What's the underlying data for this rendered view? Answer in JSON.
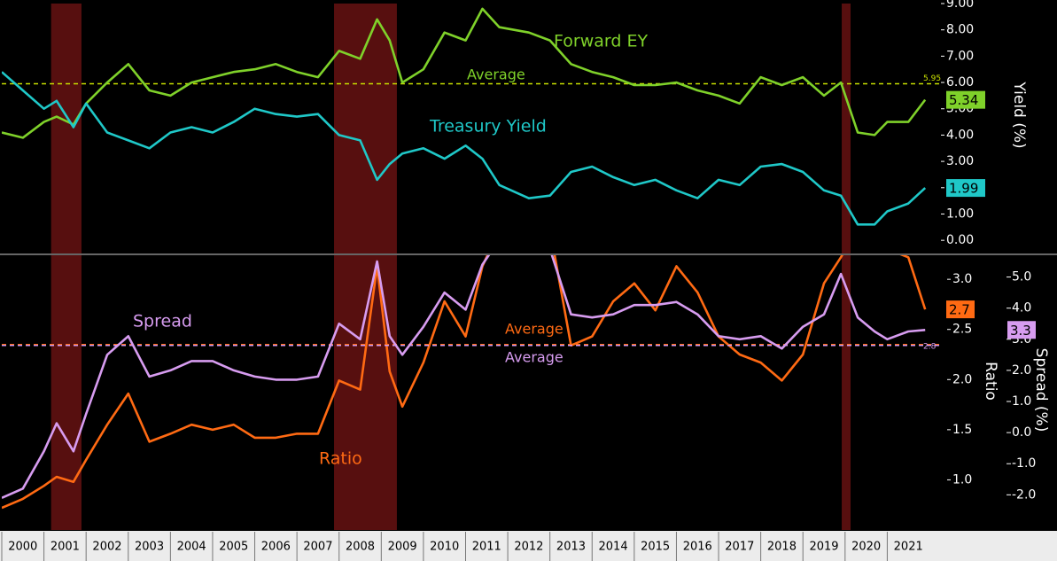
{
  "chart_data": [
    {
      "type": "line",
      "y_label": "Yield (%)",
      "annotations": [
        "Forward EY",
        "Average",
        "Treasury Yield"
      ],
      "xlim": [
        2000,
        2022
      ],
      "ylim": [
        -0.5,
        9.0
      ],
      "yticks": [
        {
          "value": 0,
          "label": "0.00"
        },
        {
          "value": 1,
          "label": "1.00"
        },
        {
          "value": 2,
          "label": "2.00"
        },
        {
          "value": 3,
          "label": "3.00"
        },
        {
          "value": 4,
          "label": "4.00"
        },
        {
          "value": 5,
          "label": "5.00"
        },
        {
          "value": 6,
          "label": "6.00"
        },
        {
          "value": 7,
          "label": "7.00"
        },
        {
          "value": 8,
          "label": "8.00"
        },
        {
          "value": 9,
          "label": "9.00"
        }
      ],
      "shaded_periods": [
        [
          2001.17,
          2001.89
        ],
        [
          2007.88,
          2009.37
        ],
        [
          2019.92,
          2020.13
        ]
      ],
      "x": [
        2000.0,
        2000.5,
        2001.0,
        2001.3,
        2001.7,
        2002.0,
        2002.5,
        2003.0,
        2003.5,
        2004.0,
        2004.5,
        2005.0,
        2005.5,
        2006.0,
        2006.5,
        2007.0,
        2007.5,
        2008.0,
        2008.5,
        2008.9,
        2009.2,
        2009.5,
        2010.0,
        2010.5,
        2011.0,
        2011.4,
        2011.8,
        2012.5,
        2013.0,
        2013.5,
        2014.0,
        2014.5,
        2015.0,
        2015.5,
        2016.0,
        2016.5,
        2017.0,
        2017.5,
        2018.0,
        2018.5,
        2019.0,
        2019.5,
        2019.9,
        2020.3,
        2020.7,
        2021.0,
        2021.5,
        2021.9
      ],
      "series": [
        {
          "name": "Forward EY",
          "color": "#7fd12a",
          "average": 5.95,
          "average_color": "#c8e000",
          "values": [
            4.1,
            3.9,
            4.5,
            4.7,
            4.4,
            5.2,
            6.0,
            6.7,
            5.7,
            5.5,
            6.0,
            6.2,
            6.4,
            6.5,
            6.7,
            6.4,
            6.2,
            7.2,
            6.9,
            8.4,
            7.6,
            6.0,
            6.5,
            7.9,
            7.6,
            8.8,
            8.1,
            7.9,
            7.6,
            6.7,
            6.4,
            6.2,
            5.9,
            5.9,
            6.0,
            5.7,
            5.5,
            5.2,
            6.2,
            5.9,
            6.2,
            5.5,
            6.0,
            4.1,
            4.0,
            4.5,
            4.5,
            5.34
          ]
        },
        {
          "name": "Treasury Yield",
          "color": "#1fc8c8",
          "values": [
            6.4,
            5.7,
            5.0,
            5.3,
            4.3,
            5.2,
            4.1,
            3.8,
            3.5,
            4.1,
            4.3,
            4.1,
            4.5,
            5.0,
            4.8,
            4.7,
            4.8,
            4.0,
            3.8,
            2.3,
            2.9,
            3.3,
            3.5,
            3.1,
            3.6,
            3.1,
            2.1,
            1.6,
            1.7,
            2.6,
            2.8,
            2.4,
            2.1,
            2.3,
            1.9,
            1.6,
            2.3,
            2.1,
            2.8,
            2.9,
            2.6,
            1.9,
            1.7,
            0.6,
            0.6,
            1.1,
            1.4,
            1.99
          ]
        }
      ]
    },
    {
      "type": "line",
      "y_label": "Ratio",
      "y2_label": "Spread (%)",
      "annotations": [
        "Spread",
        "Ratio",
        "Average",
        "Average"
      ],
      "xlim": [
        2000,
        2022
      ],
      "xticks": [
        2000,
        2001,
        2002,
        2003,
        2004,
        2005,
        2006,
        2007,
        2008,
        2009,
        2010,
        2011,
        2012,
        2013,
        2014,
        2015,
        2016,
        2017,
        2018,
        2019,
        2020,
        2021
      ],
      "ylim": [
        0.5,
        3.24
      ],
      "yticks": [
        {
          "value": 1,
          "label": "1.0"
        },
        1.5,
        {
          "value": 2,
          "label": "2.0"
        },
        2.5,
        {
          "value": 3,
          "label": "3.0"
        }
      ],
      "y2lim": [
        -3.13,
        5.7
      ],
      "y2ticks": [
        {
          "value": -2,
          "label": "-2.0"
        },
        {
          "value": -1,
          "label": "-1.0"
        },
        {
          "value": 0,
          "label": "0.0"
        },
        {
          "value": 1,
          "label": "1.0"
        },
        {
          "value": 2,
          "label": "2.0"
        },
        {
          "value": 3,
          "label": "3.0"
        },
        {
          "value": 4,
          "label": "4.0"
        },
        {
          "value": 5,
          "label": "5.0"
        }
      ],
      "shaded_periods": [
        [
          2001.17,
          2001.89
        ],
        [
          2007.88,
          2009.37
        ],
        [
          2019.92,
          2020.13
        ]
      ],
      "x": [
        2000.0,
        2000.5,
        2001.0,
        2001.3,
        2001.7,
        2002.0,
        2002.5,
        2003.0,
        2003.5,
        2004.0,
        2004.5,
        2005.0,
        2005.5,
        2006.0,
        2006.5,
        2007.0,
        2007.5,
        2008.0,
        2008.5,
        2008.9,
        2009.2,
        2009.5,
        2010.0,
        2010.5,
        2011.0,
        2011.4,
        2011.8,
        2012.5,
        2013.0,
        2013.5,
        2014.0,
        2014.5,
        2015.0,
        2015.5,
        2016.0,
        2016.5,
        2017.0,
        2017.5,
        2018.0,
        2018.5,
        2019.0,
        2019.5,
        2019.9,
        2020.3,
        2020.7,
        2021.0,
        2021.5,
        2021.9
      ],
      "series": [
        {
          "name": "Ratio",
          "color": "#ff6a13",
          "average": 2.35,
          "values": [
            0.72,
            0.81,
            0.94,
            1.03,
            0.98,
            1.2,
            1.55,
            1.86,
            1.38,
            1.46,
            1.55,
            1.5,
            1.55,
            1.42,
            1.42,
            1.46,
            1.46,
            1.99,
            1.9,
            3.13,
            2.08,
            1.73,
            2.17,
            2.78,
            2.43,
            3.13,
            3.5,
            3.57,
            3.5,
            2.34,
            2.43,
            2.78,
            2.96,
            2.69,
            3.13,
            2.87,
            2.43,
            2.25,
            2.17,
            1.99,
            2.25,
            2.96,
            3.22,
            3.5,
            3.5,
            3.3,
            3.22,
            2.7
          ]
        },
        {
          "name": "Spread",
          "color": "#d79cf0",
          "axis": "y2",
          "average": 2.8,
          "values": [
            -2.1,
            -1.8,
            -0.6,
            0.3,
            -0.6,
            0.6,
            2.5,
            3.1,
            1.8,
            2.0,
            2.3,
            2.3,
            2.0,
            1.8,
            1.7,
            1.7,
            1.8,
            3.5,
            3.0,
            5.5,
            3.1,
            2.5,
            3.4,
            4.5,
            3.95,
            5.4,
            6.2,
            6.5,
            5.9,
            3.8,
            3.7,
            3.8,
            4.1,
            4.1,
            4.2,
            3.8,
            3.1,
            3.0,
            3.1,
            2.7,
            3.4,
            3.8,
            5.1,
            3.7,
            3.25,
            3.0,
            3.25,
            3.3
          ]
        }
      ]
    }
  ]
}
